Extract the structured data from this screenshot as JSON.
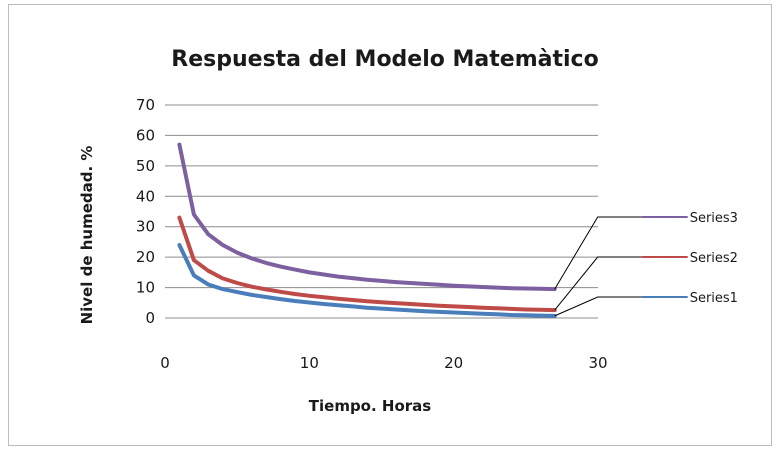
{
  "chart_data": {
    "type": "line",
    "title": "Respuesta del Modelo Matemàtico",
    "xlabel": "Tiempo. Horas",
    "ylabel": "Nivel de humedad.  %",
    "xlim": [
      0,
      30
    ],
    "ylim": [
      0,
      70
    ],
    "x_ticks": [
      "0",
      "10",
      "20",
      "30"
    ],
    "y_ticks": [
      "0",
      "10",
      "20",
      "30",
      "40",
      "50",
      "60",
      "70"
    ],
    "grid": "horizontal",
    "legend_position": "right",
    "x": [
      1,
      2,
      3,
      4,
      5,
      6,
      7,
      8,
      9,
      10,
      11,
      12,
      13,
      14,
      15,
      16,
      17,
      18,
      19,
      20,
      21,
      22,
      23,
      24,
      25,
      26,
      27
    ],
    "series": [
      {
        "name": "Series1",
        "color": "#4a7ebb",
        "values": [
          24,
          14,
          11,
          9.5,
          8.5,
          7.6,
          6.9,
          6.2,
          5.6,
          5.1,
          4.6,
          4.2,
          3.8,
          3.4,
          3.1,
          2.8,
          2.5,
          2.2,
          2.0,
          1.8,
          1.6,
          1.4,
          1.2,
          1.0,
          0.9,
          0.8,
          0.7
        ]
      },
      {
        "name": "Series2",
        "color": "#be4b48",
        "values": [
          33,
          19,
          15.5,
          13,
          11.5,
          10.3,
          9.4,
          8.6,
          7.9,
          7.3,
          6.8,
          6.3,
          5.9,
          5.5,
          5.2,
          4.9,
          4.6,
          4.3,
          4.0,
          3.8,
          3.6,
          3.4,
          3.2,
          3.0,
          2.8,
          2.7,
          2.6
        ]
      },
      {
        "name": "Series3",
        "color": "#7d60a0",
        "values": [
          57,
          34,
          27.5,
          24,
          21.5,
          19.6,
          18.1,
          16.9,
          15.9,
          15.0,
          14.3,
          13.6,
          13.1,
          12.6,
          12.2,
          11.8,
          11.5,
          11.2,
          10.9,
          10.6,
          10.4,
          10.2,
          10.0,
          9.8,
          9.7,
          9.6,
          9.5
        ]
      }
    ]
  }
}
